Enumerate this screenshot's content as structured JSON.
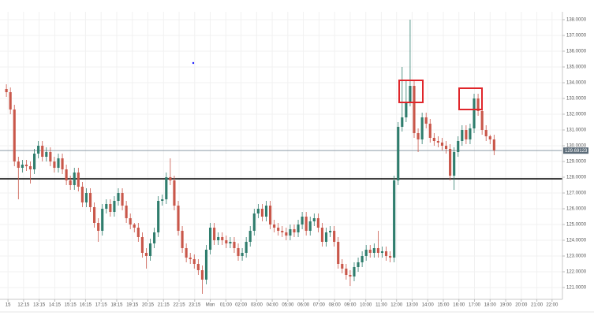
{
  "chart_data": {
    "type": "candlestick",
    "up_color": "#2f7d6d",
    "down_color": "#c9574a",
    "grid": true,
    "open": [
      133.6,
      133.4,
      132.3,
      129.0,
      128.6,
      128.8,
      128.7,
      128.5,
      129.5,
      130.0,
      129.3,
      129.6,
      129.0,
      128.6,
      129.2,
      128.5,
      127.8,
      127.5,
      128.3,
      127.4,
      126.4,
      127.0,
      126.1,
      125.1,
      124.6,
      126.0,
      126.3,
      125.8,
      126.5,
      127.0,
      126.2,
      125.4,
      125.0,
      124.8,
      124.2,
      123.2,
      123.0,
      123.8,
      124.5,
      126.5,
      126.6,
      128.0,
      127.8,
      126.2,
      124.6,
      123.5,
      122.9,
      122.8,
      122.5,
      122.1,
      121.5,
      123.4,
      124.8,
      124.0,
      124.2,
      124.0,
      123.8,
      123.9,
      123.5,
      123.0,
      123.2,
      123.9,
      124.6,
      125.7,
      126.0,
      125.5,
      126.2,
      125.0,
      124.8,
      124.6,
      124.5,
      124.3,
      124.7,
      124.5,
      125.0,
      125.5,
      124.6,
      125.2,
      125.4,
      124.8,
      123.9,
      124.5,
      124.6,
      123.9,
      122.5,
      122.2,
      121.8,
      121.7,
      122.3,
      122.6,
      123.0,
      123.4,
      123.2,
      123.5,
      123.2,
      123.3,
      123.0,
      122.9,
      127.8,
      131.2,
      131.8,
      132.8,
      133.8,
      130.8,
      130.4,
      131.8,
      131.4,
      130.5,
      130.3,
      130.2,
      130.0,
      129.8,
      128.1,
      129.6,
      130.3,
      131.0,
      130.4,
      131.1,
      133.0,
      132.2,
      131.0,
      130.6,
      130.4
    ],
    "high": [
      133.9,
      133.7,
      132.6,
      129.3,
      129.1,
      129.1,
      129.0,
      129.8,
      130.3,
      130.3,
      129.9,
      129.9,
      129.3,
      129.5,
      129.5,
      128.8,
      128.1,
      128.6,
      128.6,
      127.7,
      127.3,
      127.3,
      126.4,
      125.4,
      126.3,
      126.6,
      126.6,
      126.8,
      127.3,
      127.3,
      126.5,
      125.7,
      125.1,
      125.1,
      124.5,
      123.5,
      124.1,
      124.8,
      126.8,
      126.9,
      128.3,
      129.2,
      128.1,
      126.5,
      124.9,
      123.8,
      123.2,
      123.1,
      122.8,
      122.4,
      123.7,
      125.1,
      125.1,
      124.5,
      124.5,
      124.3,
      124.2,
      124.2,
      123.8,
      123.5,
      124.2,
      124.9,
      126.0,
      126.3,
      126.3,
      126.5,
      126.5,
      125.3,
      125.1,
      124.9,
      124.8,
      125.0,
      125.0,
      125.3,
      125.8,
      125.8,
      125.5,
      125.7,
      125.7,
      125.1,
      124.8,
      124.9,
      124.9,
      124.2,
      122.8,
      122.5,
      122.1,
      122.6,
      122.9,
      123.3,
      123.7,
      123.7,
      123.8,
      124.6,
      123.6,
      123.6,
      123.3,
      128.1,
      131.5,
      135.0,
      134.2,
      138.0,
      134.1,
      131.1,
      132.1,
      132.1,
      131.7,
      130.8,
      130.6,
      130.5,
      130.3,
      130.1,
      129.9,
      130.6,
      131.3,
      131.3,
      131.4,
      133.3,
      133.3,
      132.5,
      131.3,
      130.7,
      130.7
    ],
    "low": [
      133.1,
      132.0,
      128.7,
      126.6,
      128.3,
      128.4,
      127.6,
      128.2,
      129.2,
      129.0,
      129.0,
      128.7,
      128.3,
      128.3,
      128.2,
      127.5,
      127.2,
      127.2,
      127.1,
      126.1,
      126.1,
      125.8,
      124.8,
      123.9,
      124.3,
      125.7,
      125.5,
      125.5,
      126.2,
      125.9,
      125.1,
      124.7,
      124.5,
      123.9,
      122.9,
      122.2,
      122.7,
      123.5,
      124.2,
      126.2,
      126.3,
      127.5,
      125.9,
      124.3,
      123.2,
      122.6,
      122.5,
      122.2,
      121.8,
      120.6,
      121.2,
      123.1,
      123.7,
      123.7,
      123.7,
      123.5,
      123.5,
      123.2,
      122.7,
      122.7,
      122.9,
      123.6,
      124.3,
      125.4,
      125.2,
      125.2,
      124.7,
      124.5,
      124.3,
      124.2,
      124.0,
      124.0,
      124.2,
      124.2,
      124.7,
      124.3,
      124.3,
      124.9,
      124.5,
      123.6,
      123.6,
      124.2,
      123.6,
      122.2,
      121.9,
      121.5,
      121.1,
      121.4,
      122.0,
      122.3,
      122.7,
      122.9,
      122.9,
      122.9,
      122.9,
      122.7,
      122.6,
      122.6,
      127.5,
      130.9,
      131.5,
      132.5,
      130.5,
      129.6,
      130.1,
      131.1,
      130.2,
      130.0,
      129.9,
      129.7,
      129.5,
      127.8,
      127.2,
      129.3,
      130.0,
      130.1,
      130.1,
      130.8,
      131.9,
      130.7,
      130.3,
      130.1,
      129.4
    ],
    "close": [
      133.4,
      132.3,
      129.0,
      128.6,
      128.8,
      128.7,
      128.5,
      129.5,
      130.0,
      129.3,
      129.6,
      129.0,
      128.6,
      129.2,
      128.5,
      127.8,
      127.5,
      128.3,
      127.4,
      126.4,
      127.0,
      126.1,
      125.1,
      124.6,
      126.0,
      126.3,
      125.8,
      126.5,
      127.0,
      126.2,
      125.4,
      125.0,
      124.8,
      124.2,
      123.2,
      123.0,
      123.8,
      124.5,
      126.5,
      126.6,
      128.0,
      127.8,
      126.2,
      124.6,
      123.5,
      122.9,
      122.8,
      122.5,
      122.1,
      121.5,
      123.4,
      124.8,
      124.0,
      124.2,
      124.0,
      123.8,
      123.9,
      123.5,
      123.0,
      123.2,
      123.9,
      124.6,
      125.7,
      126.0,
      125.5,
      126.2,
      125.0,
      124.8,
      124.6,
      124.5,
      124.3,
      124.7,
      124.5,
      125.0,
      125.5,
      124.6,
      125.2,
      125.4,
      124.8,
      123.9,
      124.5,
      124.6,
      123.9,
      122.5,
      122.2,
      121.8,
      121.7,
      122.3,
      122.6,
      123.0,
      123.4,
      123.2,
      123.5,
      123.2,
      123.3,
      123.0,
      122.9,
      127.8,
      131.2,
      131.8,
      132.8,
      133.8,
      130.8,
      130.4,
      131.8,
      131.4,
      130.5,
      130.3,
      130.2,
      130.0,
      129.8,
      128.1,
      129.6,
      130.3,
      131.0,
      130.4,
      131.1,
      133.0,
      132.2,
      131.0,
      130.6,
      130.4,
      129.7
    ],
    "xlim": [
      -1.6,
      139.1
    ],
    "xticks": [
      {
        "value": 0.4,
        "label": "15"
      },
      {
        "value": 4.3,
        "label": "12:15"
      },
      {
        "value": 8.2,
        "label": "13:15"
      },
      {
        "value": 12.1,
        "label": "14:15"
      },
      {
        "value": 16.0,
        "label": "15:15"
      },
      {
        "value": 19.8,
        "label": "16:15"
      },
      {
        "value": 23.7,
        "label": "17:15"
      },
      {
        "value": 27.6,
        "label": "18:15"
      },
      {
        "value": 31.5,
        "label": "19:15"
      },
      {
        "value": 35.4,
        "label": "20:15"
      },
      {
        "value": 39.3,
        "label": "21:15"
      },
      {
        "value": 43.2,
        "label": "22:15"
      },
      {
        "value": 47.1,
        "label": "23:15"
      },
      {
        "value": 51.0,
        "label": "Mon"
      },
      {
        "value": 54.9,
        "label": "01:00"
      },
      {
        "value": 58.7,
        "label": "02:00"
      },
      {
        "value": 62.6,
        "label": "03:00"
      },
      {
        "value": 66.5,
        "label": "04:00"
      },
      {
        "value": 70.4,
        "label": "05:00"
      },
      {
        "value": 74.3,
        "label": "06:00"
      },
      {
        "value": 78.2,
        "label": "07:00"
      },
      {
        "value": 82.1,
        "label": "08:00"
      },
      {
        "value": 86.0,
        "label": "09:00"
      },
      {
        "value": 89.9,
        "label": "10:00"
      },
      {
        "value": 93.8,
        "label": "11:00"
      },
      {
        "value": 97.6,
        "label": "12:00"
      },
      {
        "value": 101.5,
        "label": "13:00"
      },
      {
        "value": 105.4,
        "label": "14:00"
      },
      {
        "value": 109.3,
        "label": "15:00"
      },
      {
        "value": 113.2,
        "label": "16:00"
      },
      {
        "value": 117.1,
        "label": "17:00"
      },
      {
        "value": 121.0,
        "label": "18:00"
      },
      {
        "value": 124.9,
        "label": "19:00"
      },
      {
        "value": 128.8,
        "label": "20:00"
      },
      {
        "value": 132.7,
        "label": "21:00"
      },
      {
        "value": 136.5,
        "label": "22:00"
      }
    ],
    "ylim": [
      120.25,
      138.5
    ],
    "yticks": [
      {
        "value": 121,
        "label": "121.0000"
      },
      {
        "value": 122,
        "label": "122.0000"
      },
      {
        "value": 123,
        "label": "123.0000"
      },
      {
        "value": 124,
        "label": "124.0000"
      },
      {
        "value": 125,
        "label": "125.0000"
      },
      {
        "value": 126,
        "label": "126.0000"
      },
      {
        "value": 127,
        "label": "127.0000"
      },
      {
        "value": 128,
        "label": "128.0000"
      },
      {
        "value": 129,
        "label": "129.0000"
      },
      {
        "value": 130,
        "label": "130.0000"
      },
      {
        "value": 131,
        "label": "131.0000"
      },
      {
        "value": 132,
        "label": "132.0000"
      },
      {
        "value": 133,
        "label": "133.0000"
      },
      {
        "value": 134,
        "label": "134.0000"
      },
      {
        "value": 135,
        "label": "135.0000"
      },
      {
        "value": 136,
        "label": "136.0000"
      },
      {
        "value": 137,
        "label": "137.0000"
      },
      {
        "value": 138,
        "label": "138.0000"
      }
    ],
    "price_line": {
      "value": 129.69123,
      "color": "#8d9ba6",
      "label_color": "#5b6b78"
    },
    "level_line": {
      "value": 127.9,
      "color": "#000000"
    }
  }
}
